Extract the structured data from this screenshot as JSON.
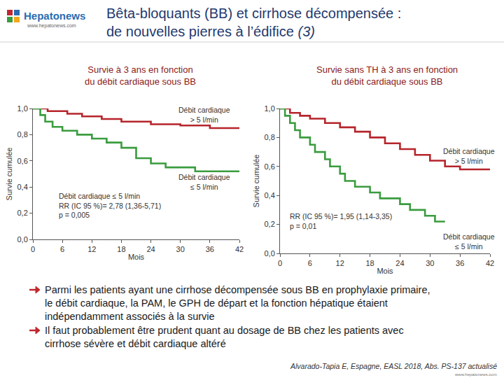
{
  "header": {
    "logo": "Hepatonews",
    "logo_url": "www.hepatonews.com",
    "title_lines": [
      "Bêta-bloquants (BB) et cirrhose décompensée :",
      "de nouvelles pierres à l’édifice"
    ],
    "title_italic": "(3)"
  },
  "chart_data": [
    {
      "type": "line",
      "line_style": "step",
      "title": [
        "Survie à 3 ans en fonction",
        "du débit cardiaque sous BB"
      ],
      "x_label": "Mois",
      "y_label": "Survie cumulée",
      "xlim": [
        0,
        42
      ],
      "xticks": [
        0,
        6,
        12,
        18,
        24,
        30,
        36,
        42
      ],
      "ylim": [
        0,
        1
      ],
      "yticks": [
        {
          "value": 0,
          "label": "0,0"
        },
        {
          "value": 0.2,
          "label": "0,2"
        },
        {
          "value": 0.4,
          "label": "0,4"
        },
        {
          "value": 0.6,
          "label": "0,6"
        },
        {
          "value": 0.8,
          "label": "0,8"
        },
        {
          "value": 1,
          "label": "1,0"
        }
      ],
      "series": [
        {
          "name": "Débit cardiaque > 5 l/min",
          "color": "#b5252b",
          "x": [
            0,
            3,
            7,
            10,
            14,
            18,
            24,
            30,
            36,
            42
          ],
          "values": [
            1,
            0.98,
            0.96,
            0.94,
            0.92,
            0.9,
            0.88,
            0.87,
            0.85,
            0.85
          ]
        },
        {
          "name": "Débit cardiaque ≤ 5 l/min",
          "color": "#3a9c3f",
          "x": [
            0,
            1.5,
            2.5,
            4,
            6,
            9,
            12,
            15,
            18,
            21,
            24,
            27,
            33,
            42
          ],
          "values": [
            1,
            0.95,
            0.9,
            0.86,
            0.83,
            0.8,
            0.77,
            0.74,
            0.7,
            0.62,
            0.58,
            0.55,
            0.52,
            0.52
          ]
        }
      ],
      "annotations": [
        {
          "text": [
            "Débit cardiaque",
            "> 5 l/min"
          ]
        },
        {
          "text": [
            "Débit cardiaque",
            "≤ 5 l/min"
          ]
        },
        {
          "text": [
            "Débit cardiaque ≤ 5 l/min",
            "RR (IC 95 %)= 2,78 (1,36-5,71)",
            "p = 0,005"
          ]
        }
      ]
    },
    {
      "type": "line",
      "line_style": "step",
      "title": [
        "Survie sans TH à 3 ans en fonction",
        "du débit cardiaque sous BB"
      ],
      "x_label": "Mois",
      "y_label": "Survie cumulée",
      "xlim": [
        0,
        42
      ],
      "xticks": [
        0,
        6,
        12,
        18,
        24,
        30,
        36,
        42
      ],
      "ylim": [
        0,
        1
      ],
      "yticks": [
        {
          "value": 0,
          "label": "0,0"
        },
        {
          "value": 0.2,
          "label": "0,2"
        },
        {
          "value": 0.4,
          "label": "0,4"
        },
        {
          "value": 0.6,
          "label": "0,6"
        },
        {
          "value": 0.8,
          "label": "0,8"
        },
        {
          "value": 1,
          "label": "1,0"
        }
      ],
      "series": [
        {
          "name": "Débit cardiaque > 5 l/min",
          "color": "#b5252b",
          "x": [
            0,
            2,
            4,
            6,
            9,
            12,
            15,
            18,
            21,
            24,
            27,
            30,
            33,
            36,
            42
          ],
          "values": [
            1,
            0.97,
            0.95,
            0.93,
            0.9,
            0.87,
            0.84,
            0.8,
            0.76,
            0.72,
            0.68,
            0.64,
            0.6,
            0.58,
            0.58
          ]
        },
        {
          "name": "Débit cardiaque ≤ 5 l/min",
          "color": "#3a9c3f",
          "x": [
            0,
            1,
            2,
            3,
            4,
            6,
            7,
            9,
            10,
            12,
            13,
            15,
            18,
            20,
            24,
            26,
            29,
            31,
            33
          ],
          "values": [
            1,
            0.95,
            0.9,
            0.85,
            0.8,
            0.75,
            0.7,
            0.65,
            0.6,
            0.55,
            0.5,
            0.46,
            0.42,
            0.38,
            0.34,
            0.3,
            0.26,
            0.22,
            0.22
          ]
        }
      ],
      "annotations": [
        {
          "text": [
            "Débit cardiaque",
            "> 5 l/min"
          ]
        },
        {
          "text": [
            "RR (IC 95 %)= 1,95 (1,14-3,35)",
            "p = 0,01"
          ]
        },
        {
          "text": [
            "Débit cardiaque",
            "≤ 5 l/min"
          ]
        }
      ]
    }
  ],
  "bullets": [
    [
      "Parmi les patients ayant une cirrhose décompensée sous BB en prophylaxie primaire,",
      "le débit cardiaque, la PAM, le GPH de départ et la fonction hépatique étaient",
      "indépendamment associés à la survie"
    ],
    [
      "Il faut probablement être prudent quant au dosage de BB chez les patients avec",
      "cirrhose sévère et débit cardiaque altéré"
    ]
  ],
  "source": "Alvarado-Tapia E, Espagne, EASL 2018, Abs. PS-137 actualisé",
  "footer": "www.hepatonews.com"
}
